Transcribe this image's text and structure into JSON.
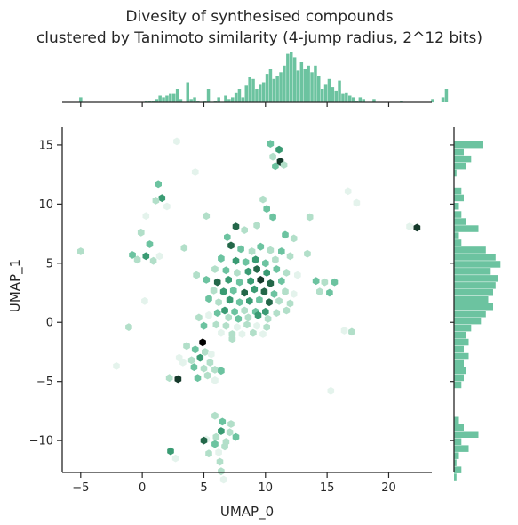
{
  "chart_data": {
    "type": "hexbin",
    "title": [
      "Divesity of synthesised compounds",
      "clustered by Tanimoto similarity (4-jump radius, 2^12 bits)"
    ],
    "xlabel": "UMAP_0",
    "ylabel": "UMAP_1",
    "xlim": [
      -6.5,
      23.5
    ],
    "ylim": [
      -12.7,
      16.5
    ],
    "xticks": [
      -5,
      0,
      5,
      10,
      15,
      20
    ],
    "yticks": [
      -10,
      -5,
      0,
      5,
      10,
      15
    ],
    "grid": false,
    "colors": {
      "marginal": "#6cc3a0",
      "hex_scale": [
        "#e4f3ec",
        "#b2dfc9",
        "#6cc3a0",
        "#3a9b73",
        "#236749",
        "#14392a",
        "#000000"
      ]
    },
    "hexbins": [
      {
        "x": 2.8,
        "y": 15.3,
        "c": 1
      },
      {
        "x": 10.4,
        "y": 15.1,
        "c": 3
      },
      {
        "x": 11.1,
        "y": 14.6,
        "c": 4
      },
      {
        "x": 10.6,
        "y": 14.0,
        "c": 2
      },
      {
        "x": 11.2,
        "y": 13.6,
        "c": 6
      },
      {
        "x": 10.8,
        "y": 13.2,
        "c": 3
      },
      {
        "x": 11.5,
        "y": 13.3,
        "c": 2
      },
      {
        "x": 4.3,
        "y": 12.7,
        "c": 1
      },
      {
        "x": 1.3,
        "y": 11.7,
        "c": 3
      },
      {
        "x": 1.6,
        "y": 10.5,
        "c": 4
      },
      {
        "x": 1.1,
        "y": 10.3,
        "c": 2
      },
      {
        "x": 2.0,
        "y": 9.8,
        "c": 1
      },
      {
        "x": 16.7,
        "y": 11.1,
        "c": 1
      },
      {
        "x": 17.4,
        "y": 10.1,
        "c": 1
      },
      {
        "x": 9.8,
        "y": 10.4,
        "c": 2
      },
      {
        "x": 10.1,
        "y": 9.6,
        "c": 3
      },
      {
        "x": 10.6,
        "y": 8.9,
        "c": 3
      },
      {
        "x": 9.3,
        "y": 8.2,
        "c": 2
      },
      {
        "x": 0.3,
        "y": 9.0,
        "c": 1
      },
      {
        "x": 5.2,
        "y": 9.0,
        "c": 2
      },
      {
        "x": 13.6,
        "y": 8.9,
        "c": 2
      },
      {
        "x": 7.6,
        "y": 8.1,
        "c": 5
      },
      {
        "x": 8.3,
        "y": 7.8,
        "c": 2
      },
      {
        "x": 6.9,
        "y": 7.2,
        "c": 3
      },
      {
        "x": 11.6,
        "y": 7.4,
        "c": 3
      },
      {
        "x": 12.3,
        "y": 7.1,
        "c": 2
      },
      {
        "x": 21.7,
        "y": 8.1,
        "c": 1
      },
      {
        "x": 22.3,
        "y": 8.0,
        "c": 6
      },
      {
        "x": -0.1,
        "y": 7.6,
        "c": 2
      },
      {
        "x": 0.6,
        "y": 6.6,
        "c": 3
      },
      {
        "x": 3.4,
        "y": 6.3,
        "c": 2
      },
      {
        "x": -5.0,
        "y": 6.0,
        "c": 2
      },
      {
        "x": -0.8,
        "y": 5.7,
        "c": 3
      },
      {
        "x": -0.4,
        "y": 5.3,
        "c": 2
      },
      {
        "x": 0.3,
        "y": 5.6,
        "c": 4
      },
      {
        "x": 0.9,
        "y": 5.2,
        "c": 2
      },
      {
        "x": 1.4,
        "y": 5.6,
        "c": 1
      },
      {
        "x": 7.2,
        "y": 6.5,
        "c": 5
      },
      {
        "x": 8.0,
        "y": 6.2,
        "c": 3
      },
      {
        "x": 8.9,
        "y": 6.0,
        "c": 2
      },
      {
        "x": 9.6,
        "y": 6.4,
        "c": 3
      },
      {
        "x": 10.4,
        "y": 6.1,
        "c": 2
      },
      {
        "x": 11.3,
        "y": 6.0,
        "c": 3
      },
      {
        "x": 12.0,
        "y": 5.6,
        "c": 2
      },
      {
        "x": 13.4,
        "y": 5.8,
        "c": 2
      },
      {
        "x": 6.4,
        "y": 5.4,
        "c": 3
      },
      {
        "x": 7.6,
        "y": 5.2,
        "c": 4
      },
      {
        "x": 8.4,
        "y": 5.1,
        "c": 3
      },
      {
        "x": 9.2,
        "y": 5.3,
        "c": 4
      },
      {
        "x": 10.0,
        "y": 5.0,
        "c": 3
      },
      {
        "x": 10.8,
        "y": 5.3,
        "c": 2
      },
      {
        "x": 5.9,
        "y": 4.5,
        "c": 2
      },
      {
        "x": 6.8,
        "y": 4.4,
        "c": 3
      },
      {
        "x": 7.7,
        "y": 4.2,
        "c": 2
      },
      {
        "x": 8.6,
        "y": 4.3,
        "c": 4
      },
      {
        "x": 9.3,
        "y": 4.5,
        "c": 5
      },
      {
        "x": 10.1,
        "y": 4.2,
        "c": 4
      },
      {
        "x": 10.9,
        "y": 4.5,
        "c": 3
      },
      {
        "x": 11.7,
        "y": 4.2,
        "c": 2
      },
      {
        "x": 12.6,
        "y": 4.0,
        "c": 1
      },
      {
        "x": 4.4,
        "y": 4.0,
        "c": 2
      },
      {
        "x": 5.2,
        "y": 3.6,
        "c": 3
      },
      {
        "x": 6.1,
        "y": 3.4,
        "c": 5
      },
      {
        "x": 7.0,
        "y": 3.6,
        "c": 4
      },
      {
        "x": 7.9,
        "y": 3.4,
        "c": 3
      },
      {
        "x": 8.8,
        "y": 3.5,
        "c": 4
      },
      {
        "x": 9.6,
        "y": 3.6,
        "c": 6
      },
      {
        "x": 10.4,
        "y": 3.3,
        "c": 5
      },
      {
        "x": 11.3,
        "y": 3.5,
        "c": 3
      },
      {
        "x": 14.1,
        "y": 3.5,
        "c": 3
      },
      {
        "x": 14.8,
        "y": 3.4,
        "c": 2
      },
      {
        "x": 15.6,
        "y": 3.4,
        "c": 3
      },
      {
        "x": 5.8,
        "y": 2.7,
        "c": 2
      },
      {
        "x": 6.6,
        "y": 2.6,
        "c": 4
      },
      {
        "x": 7.4,
        "y": 2.7,
        "c": 3
      },
      {
        "x": 8.3,
        "y": 2.5,
        "c": 5
      },
      {
        "x": 9.1,
        "y": 2.8,
        "c": 4
      },
      {
        "x": 9.9,
        "y": 2.6,
        "c": 5
      },
      {
        "x": 10.7,
        "y": 2.4,
        "c": 3
      },
      {
        "x": 11.6,
        "y": 2.6,
        "c": 2
      },
      {
        "x": 12.3,
        "y": 2.4,
        "c": 1
      },
      {
        "x": 14.4,
        "y": 2.6,
        "c": 2
      },
      {
        "x": 15.2,
        "y": 2.5,
        "c": 3
      },
      {
        "x": 5.4,
        "y": 2.0,
        "c": 3
      },
      {
        "x": 6.2,
        "y": 1.7,
        "c": 2
      },
      {
        "x": 7.1,
        "y": 1.9,
        "c": 4
      },
      {
        "x": 7.9,
        "y": 1.7,
        "c": 3
      },
      {
        "x": 8.7,
        "y": 1.8,
        "c": 4
      },
      {
        "x": 9.5,
        "y": 1.9,
        "c": 3
      },
      {
        "x": 10.3,
        "y": 1.7,
        "c": 5
      },
      {
        "x": 11.1,
        "y": 1.8,
        "c": 2
      },
      {
        "x": 12.0,
        "y": 1.6,
        "c": 2
      },
      {
        "x": 0.2,
        "y": 1.8,
        "c": 1
      },
      {
        "x": 6.7,
        "y": 1.0,
        "c": 4
      },
      {
        "x": 7.5,
        "y": 0.9,
        "c": 3
      },
      {
        "x": 8.3,
        "y": 1.0,
        "c": 2
      },
      {
        "x": 9.2,
        "y": 0.9,
        "c": 3
      },
      {
        "x": 10.0,
        "y": 0.9,
        "c": 4
      },
      {
        "x": 10.9,
        "y": 0.8,
        "c": 2
      },
      {
        "x": 11.7,
        "y": 1.0,
        "c": 2
      },
      {
        "x": 4.6,
        "y": 0.4,
        "c": 2
      },
      {
        "x": 5.4,
        "y": 0.6,
        "c": 1
      },
      {
        "x": 6.1,
        "y": 0.8,
        "c": 3
      },
      {
        "x": 7.0,
        "y": 0.4,
        "c": 2
      },
      {
        "x": 7.8,
        "y": 0.3,
        "c": 3
      },
      {
        "x": 8.6,
        "y": 0.4,
        "c": 2
      },
      {
        "x": 9.4,
        "y": 0.6,
        "c": 4
      },
      {
        "x": 10.2,
        "y": 0.3,
        "c": 2
      },
      {
        "x": 5.0,
        "y": -0.3,
        "c": 3
      },
      {
        "x": 6.0,
        "y": -0.2,
        "c": 2
      },
      {
        "x": 6.8,
        "y": -0.3,
        "c": 2
      },
      {
        "x": 7.7,
        "y": -0.4,
        "c": 1
      },
      {
        "x": 8.5,
        "y": -0.2,
        "c": 2
      },
      {
        "x": 9.3,
        "y": -0.3,
        "c": 1
      },
      {
        "x": 10.1,
        "y": -0.4,
        "c": 2
      },
      {
        "x": 6.4,
        "y": -0.9,
        "c": 1
      },
      {
        "x": 7.3,
        "y": -1.0,
        "c": 2
      },
      {
        "x": 8.1,
        "y": -1.0,
        "c": 1
      },
      {
        "x": 9.0,
        "y": -0.9,
        "c": 2
      },
      {
        "x": 9.8,
        "y": -1.0,
        "c": 1
      },
      {
        "x": -1.1,
        "y": -0.4,
        "c": 2
      },
      {
        "x": 4.9,
        "y": -1.7,
        "c": 7
      },
      {
        "x": 4.3,
        "y": -2.3,
        "c": 3
      },
      {
        "x": 5.1,
        "y": -2.5,
        "c": 2
      },
      {
        "x": 3.6,
        "y": -2.0,
        "c": 2
      },
      {
        "x": 5.6,
        "y": -2.7,
        "c": 1
      },
      {
        "x": 4.0,
        "y": -3.2,
        "c": 2
      },
      {
        "x": 4.7,
        "y": -3.0,
        "c": 4
      },
      {
        "x": 5.5,
        "y": -3.4,
        "c": 2
      },
      {
        "x": 3.3,
        "y": -3.4,
        "c": 1
      },
      {
        "x": 4.2,
        "y": -3.8,
        "c": 3
      },
      {
        "x": 5.0,
        "y": -3.9,
        "c": 2
      },
      {
        "x": 5.9,
        "y": -4.0,
        "c": 2
      },
      {
        "x": 6.4,
        "y": -4.1,
        "c": 3
      },
      {
        "x": 7.3,
        "y": -1.4,
        "c": 2
      },
      {
        "x": 3.0,
        "y": -3.0,
        "c": 1
      },
      {
        "x": 16.4,
        "y": -0.7,
        "c": 1
      },
      {
        "x": 17.0,
        "y": -0.8,
        "c": 2
      },
      {
        "x": -2.1,
        "y": -3.7,
        "c": 1
      },
      {
        "x": 2.9,
        "y": -4.8,
        "c": 6
      },
      {
        "x": 2.2,
        "y": -4.7,
        "c": 2
      },
      {
        "x": 4.5,
        "y": -4.7,
        "c": 3
      },
      {
        "x": 5.3,
        "y": -4.5,
        "c": 2
      },
      {
        "x": 5.9,
        "y": -4.9,
        "c": 1
      },
      {
        "x": 15.3,
        "y": -5.8,
        "c": 1
      },
      {
        "x": 5.9,
        "y": -7.9,
        "c": 2
      },
      {
        "x": 6.5,
        "y": -8.4,
        "c": 3
      },
      {
        "x": 7.2,
        "y": -8.6,
        "c": 2
      },
      {
        "x": 6.4,
        "y": -9.2,
        "c": 4
      },
      {
        "x": 7.1,
        "y": -9.3,
        "c": 2
      },
      {
        "x": 7.6,
        "y": -9.7,
        "c": 3
      },
      {
        "x": 6.0,
        "y": -9.7,
        "c": 2
      },
      {
        "x": 6.8,
        "y": -10.1,
        "c": 2
      },
      {
        "x": 5.2,
        "y": -9.9,
        "c": 1
      },
      {
        "x": 5.0,
        "y": -10.0,
        "c": 5
      },
      {
        "x": 5.9,
        "y": -10.3,
        "c": 3
      },
      {
        "x": 6.7,
        "y": -10.5,
        "c": 2
      },
      {
        "x": 2.3,
        "y": -10.9,
        "c": 4
      },
      {
        "x": 2.7,
        "y": -11.5,
        "c": 1
      },
      {
        "x": 5.4,
        "y": -11.1,
        "c": 2
      },
      {
        "x": 6.2,
        "y": -11.0,
        "c": 1
      },
      {
        "x": 6.3,
        "y": -11.8,
        "c": 2
      },
      {
        "x": 6.4,
        "y": -12.6,
        "c": 2
      },
      {
        "x": 6.6,
        "y": -13.3,
        "c": 1
      }
    ],
    "marginal_x": {
      "bin_start": -5.4,
      "bin_width": 0.28,
      "counts": [
        0,
        3,
        0,
        0,
        0,
        0,
        0,
        0,
        0,
        0,
        0,
        0,
        0,
        0,
        0,
        0,
        0,
        0,
        0,
        0,
        1,
        1,
        1,
        2,
        4,
        3,
        4,
        5,
        5,
        8,
        2,
        0,
        12,
        2,
        3,
        1,
        0,
        1,
        8,
        0,
        1,
        3,
        0,
        4,
        2,
        3,
        6,
        8,
        3,
        10,
        15,
        14,
        8,
        11,
        12,
        17,
        20,
        14,
        16,
        18,
        22,
        29,
        30,
        27,
        19,
        24,
        20,
        22,
        18,
        22,
        16,
        8,
        11,
        14,
        9,
        7,
        13,
        5,
        6,
        4,
        3,
        1,
        3,
        2,
        0,
        0,
        2,
        0,
        0,
        0,
        0,
        0,
        0,
        0,
        1,
        0,
        0,
        0,
        0,
        0,
        0,
        0,
        0,
        2,
        0,
        0,
        3,
        8,
        0
      ],
      "ymax": 32
    },
    "marginal_y": {
      "bins": [
        {
          "y": 15.0,
          "c": 12
        },
        {
          "y": 14.4,
          "c": 4
        },
        {
          "y": 13.8,
          "c": 7
        },
        {
          "y": 13.2,
          "c": 5
        },
        {
          "y": 12.6,
          "c": 1
        },
        {
          "y": 11.1,
          "c": 3
        },
        {
          "y": 10.5,
          "c": 4
        },
        {
          "y": 9.8,
          "c": 2
        },
        {
          "y": 9.1,
          "c": 3
        },
        {
          "y": 8.5,
          "c": 5
        },
        {
          "y": 7.9,
          "c": 10
        },
        {
          "y": 7.3,
          "c": 2
        },
        {
          "y": 6.7,
          "c": 3
        },
        {
          "y": 6.1,
          "c": 13
        },
        {
          "y": 5.5,
          "c": 17
        },
        {
          "y": 4.9,
          "c": 19
        },
        {
          "y": 4.3,
          "c": 15
        },
        {
          "y": 3.7,
          "c": 18
        },
        {
          "y": 3.1,
          "c": 17
        },
        {
          "y": 2.5,
          "c": 16
        },
        {
          "y": 1.9,
          "c": 14
        },
        {
          "y": 1.3,
          "c": 16
        },
        {
          "y": 0.7,
          "c": 13
        },
        {
          "y": 0.1,
          "c": 11
        },
        {
          "y": -0.5,
          "c": 7
        },
        {
          "y": -1.1,
          "c": 5
        },
        {
          "y": -1.7,
          "c": 6
        },
        {
          "y": -2.3,
          "c": 4
        },
        {
          "y": -2.9,
          "c": 6
        },
        {
          "y": -3.5,
          "c": 4
        },
        {
          "y": -4.1,
          "c": 5
        },
        {
          "y": -4.7,
          "c": 4
        },
        {
          "y": -5.3,
          "c": 3
        },
        {
          "y": -8.3,
          "c": 2
        },
        {
          "y": -8.9,
          "c": 4
        },
        {
          "y": -9.5,
          "c": 10
        },
        {
          "y": -10.1,
          "c": 3
        },
        {
          "y": -10.7,
          "c": 6
        },
        {
          "y": -11.3,
          "c": 2
        },
        {
          "y": -11.9,
          "c": 1
        },
        {
          "y": -12.5,
          "c": 3
        },
        {
          "y": -13.1,
          "c": 1
        }
      ],
      "cmax": 20
    }
  }
}
